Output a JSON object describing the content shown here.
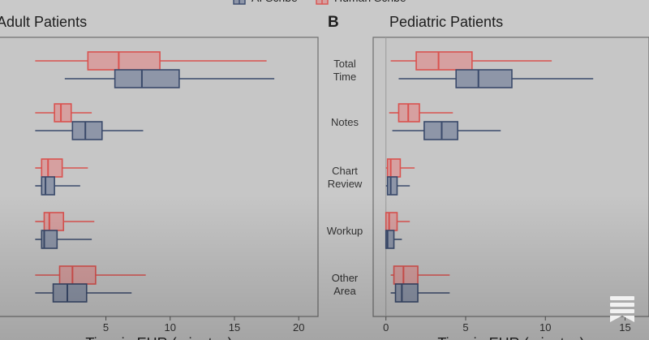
{
  "chart_data": {
    "type": "boxplot",
    "legend": {
      "position": "top",
      "entries": [
        {
          "name": "AI Scribe",
          "color": "#3a4a6b",
          "fill": "#8e96a8"
        },
        {
          "name": "Human Scribe",
          "color": "#d9524f",
          "fill": "#d6a0a0"
        }
      ]
    },
    "categories": [
      "Total Time",
      "Notes",
      "Chart Review",
      "Workup",
      "Other Area"
    ],
    "category_lines": [
      [
        "Total",
        "Time"
      ],
      [
        "Notes"
      ],
      [
        "Chart",
        "Review"
      ],
      [
        "Workup"
      ],
      [
        "Other",
        "Area"
      ]
    ],
    "panels": [
      {
        "label": "",
        "title": "Adult Patients",
        "xlabel": "Time in EHR (minutes)",
        "xlim": [
          -4.5,
          21.5
        ],
        "xticks": [
          5,
          10,
          15,
          20
        ],
        "series": {
          "Human Scribe": [
            {
              "min": -0.5,
              "q1": 3.6,
              "median": 6.0,
              "q3": 9.2,
              "max": 17.5
            },
            {
              "min": -0.5,
              "q1": 1.0,
              "median": 1.5,
              "q3": 2.3,
              "max": 3.9
            },
            {
              "min": -0.5,
              "q1": 0.0,
              "median": 0.5,
              "q3": 1.6,
              "max": 3.6
            },
            {
              "min": -0.5,
              "q1": 0.2,
              "median": 0.6,
              "q3": 1.7,
              "max": 4.1
            },
            {
              "min": -0.5,
              "q1": 1.4,
              "median": 2.4,
              "q3": 4.2,
              "max": 8.1
            }
          ],
          "AI Scribe": [
            {
              "min": 1.8,
              "q1": 5.7,
              "median": 7.8,
              "q3": 10.7,
              "max": 18.1
            },
            {
              "min": -0.5,
              "q1": 2.4,
              "median": 3.4,
              "q3": 4.7,
              "max": 7.9
            },
            {
              "min": -0.5,
              "q1": 0.0,
              "median": 0.3,
              "q3": 1.0,
              "max": 3.0
            },
            {
              "min": -0.5,
              "q1": 0.0,
              "median": 0.2,
              "q3": 1.2,
              "max": 3.9
            },
            {
              "min": -0.5,
              "q1": 0.9,
              "median": 2.0,
              "q3": 3.5,
              "max": 7.0
            }
          ]
        }
      },
      {
        "label": "B",
        "title": "Pediatric Patients",
        "xlabel": "Time in EHR (minutes)",
        "xlim": [
          -0.8,
          16.5
        ],
        "xticks": [
          0,
          5,
          10,
          15
        ],
        "series": {
          "Human Scribe": [
            {
              "min": 0.3,
              "q1": 1.9,
              "median": 3.3,
              "q3": 5.4,
              "max": 10.4
            },
            {
              "min": 0.2,
              "q1": 0.8,
              "median": 1.4,
              "q3": 2.1,
              "max": 4.2
            },
            {
              "min": 0.0,
              "q1": 0.1,
              "median": 0.3,
              "q3": 0.9,
              "max": 1.8
            },
            {
              "min": 0.0,
              "q1": 0.0,
              "median": 0.2,
              "q3": 0.7,
              "max": 1.5
            },
            {
              "min": 0.3,
              "q1": 0.5,
              "median": 1.1,
              "q3": 2.0,
              "max": 4.0
            }
          ],
          "AI Scribe": [
            {
              "min": 0.8,
              "q1": 4.4,
              "median": 5.8,
              "q3": 7.9,
              "max": 13.0
            },
            {
              "min": 0.4,
              "q1": 2.4,
              "median": 3.5,
              "q3": 4.5,
              "max": 7.2
            },
            {
              "min": 0.0,
              "q1": 0.1,
              "median": 0.3,
              "q3": 0.7,
              "max": 1.5
            },
            {
              "min": 0.0,
              "q1": 0.0,
              "median": 0.1,
              "q3": 0.5,
              "max": 1.0
            },
            {
              "min": 0.3,
              "q1": 0.6,
              "median": 1.0,
              "q3": 2.0,
              "max": 4.0
            }
          ]
        }
      }
    ]
  }
}
